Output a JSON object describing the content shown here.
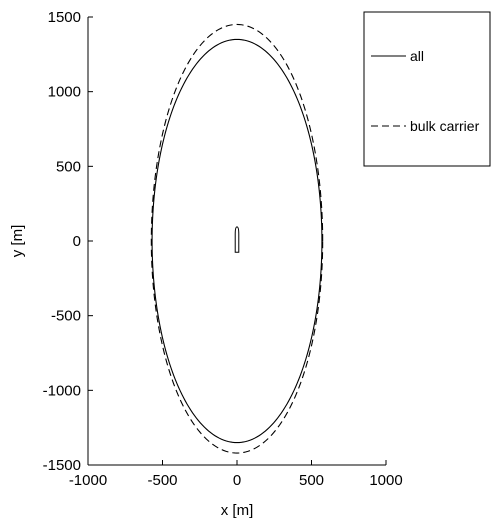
{
  "chart_data": {
    "type": "line",
    "xlabel": "x [m]",
    "ylabel": "y [m]",
    "xlim": [
      -1000,
      1000
    ],
    "ylim": [
      -1500,
      1500
    ],
    "xticks": [
      -1000,
      -500,
      0,
      500,
      1000
    ],
    "yticks": [
      -1500,
      -1000,
      -500,
      0,
      500,
      1000,
      1500
    ],
    "xtick_labels": [
      "-1000",
      "-500",
      "0",
      "500",
      "1000"
    ],
    "ytick_labels": [
      "-1500",
      "-1000",
      "-500",
      "0",
      "500",
      "1000",
      "1500"
    ],
    "grid": false,
    "legend_position": "top-right",
    "series": [
      {
        "name": "all",
        "style": "solid",
        "color": "#000000",
        "shape": "ellipse",
        "center": [
          0,
          0
        ],
        "semi_axis_x": 570,
        "semi_axis_y_top": 1350,
        "semi_axis_y_bottom": 1350
      },
      {
        "name": "bulk carrier",
        "style": "dashed",
        "color": "#000000",
        "shape": "ellipse",
        "center": [
          0,
          0
        ],
        "semi_axis_x": 575,
        "semi_axis_y_top": 1450,
        "semi_axis_y_bottom": 1420
      }
    ],
    "annotations": [
      {
        "type": "ship-outline",
        "center_x": 0,
        "y_bottom": -75,
        "y_top": 95,
        "half_width": 12
      }
    ]
  }
}
